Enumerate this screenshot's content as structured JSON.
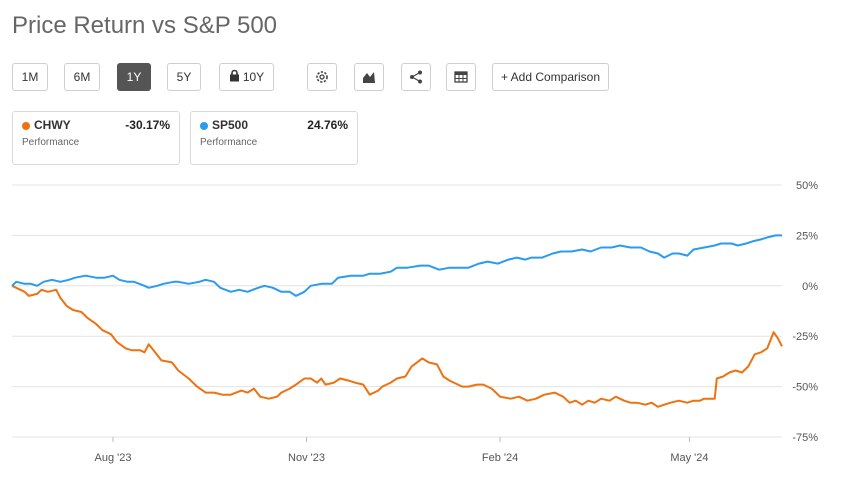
{
  "header": {
    "title": "Price Return vs S&P 500"
  },
  "toolbar": {
    "ranges": [
      "1M",
      "6M",
      "1Y",
      "5Y",
      "10Y"
    ],
    "active_range": "1Y",
    "add_comparison": "+ Add Comparison",
    "icons": [
      "gear-icon",
      "chart-type-icon",
      "share-icon",
      "table-icon",
      "lock-icon"
    ]
  },
  "legend_cards": [
    {
      "name": "CHWY",
      "value": "-30.17%",
      "sub": "Performance",
      "color": "#ee7210"
    },
    {
      "name": "SP500",
      "value": "24.76%",
      "sub": "Performance",
      "color": "#2b9bef"
    }
  ],
  "chart_data": {
    "type": "line",
    "title": "Price Return vs S&P 500",
    "xlabel": "",
    "ylabel": "",
    "x_range": [
      "2023-06-14",
      "2024-06-14"
    ],
    "x_ticks": [
      {
        "date": "2023-08-01",
        "label": "Aug '23"
      },
      {
        "date": "2023-11-01",
        "label": "Nov '23"
      },
      {
        "date": "2024-02-01",
        "label": "Feb '24"
      },
      {
        "date": "2024-05-01",
        "label": "May '24"
      }
    ],
    "y_ticks": [
      50,
      25,
      0,
      -25,
      -50,
      -75
    ],
    "y_tick_labels": [
      "50%",
      "25%",
      "0%",
      "-25%",
      "-50%",
      "-75%"
    ],
    "ylim": [
      -75,
      50
    ],
    "grid": true,
    "y_axis_side": "right",
    "series": [
      {
        "name": "CHWY",
        "color": "#ee7210",
        "points": [
          [
            "2023-06-14",
            0
          ],
          [
            "2023-06-16",
            -1
          ],
          [
            "2023-06-20",
            -3
          ],
          [
            "2023-06-22",
            -5
          ],
          [
            "2023-06-26",
            -4
          ],
          [
            "2023-06-28",
            -2
          ],
          [
            "2023-07-01",
            -3
          ],
          [
            "2023-07-05",
            -2
          ],
          [
            "2023-07-07",
            -6
          ],
          [
            "2023-07-10",
            -10
          ],
          [
            "2023-07-13",
            -12
          ],
          [
            "2023-07-17",
            -13
          ],
          [
            "2023-07-20",
            -16
          ],
          [
            "2023-07-24",
            -19
          ],
          [
            "2023-07-27",
            -22
          ],
          [
            "2023-07-31",
            -24
          ],
          [
            "2023-08-03",
            -28
          ],
          [
            "2023-08-07",
            -31
          ],
          [
            "2023-08-10",
            -32
          ],
          [
            "2023-08-14",
            -32
          ],
          [
            "2023-08-16",
            -33
          ],
          [
            "2023-08-18",
            -29
          ],
          [
            "2023-08-21",
            -33
          ],
          [
            "2023-08-24",
            -37
          ],
          [
            "2023-08-29",
            -38
          ],
          [
            "2023-09-01",
            -42
          ],
          [
            "2023-09-06",
            -46
          ],
          [
            "2023-09-10",
            -50
          ],
          [
            "2023-09-14",
            -53
          ],
          [
            "2023-09-18",
            -53
          ],
          [
            "2023-09-22",
            -54
          ],
          [
            "2023-09-26",
            -54
          ],
          [
            "2023-10-01",
            -52
          ],
          [
            "2023-10-04",
            -53
          ],
          [
            "2023-10-07",
            -51
          ],
          [
            "2023-10-10",
            -55
          ],
          [
            "2023-10-14",
            -56
          ],
          [
            "2023-10-18",
            -55
          ],
          [
            "2023-10-20",
            -53
          ],
          [
            "2023-10-24",
            -51
          ],
          [
            "2023-10-27",
            -49
          ],
          [
            "2023-10-31",
            -46
          ],
          [
            "2023-11-03",
            -46
          ],
          [
            "2023-11-06",
            -48
          ],
          [
            "2023-11-08",
            -46
          ],
          [
            "2023-11-10",
            -49
          ],
          [
            "2023-11-14",
            -48
          ],
          [
            "2023-11-17",
            -46
          ],
          [
            "2023-11-21",
            -47
          ],
          [
            "2023-11-24",
            -48
          ],
          [
            "2023-11-28",
            -49
          ],
          [
            "2023-12-01",
            -54
          ],
          [
            "2023-12-05",
            -52
          ],
          [
            "2023-12-07",
            -50
          ],
          [
            "2023-12-11",
            -48
          ],
          [
            "2023-12-14",
            -46
          ],
          [
            "2023-12-18",
            -45
          ],
          [
            "2023-12-21",
            -40
          ],
          [
            "2023-12-26",
            -36
          ],
          [
            "2023-12-29",
            -38
          ],
          [
            "2024-01-02",
            -39
          ],
          [
            "2024-01-05",
            -45
          ],
          [
            "2024-01-08",
            -47
          ],
          [
            "2024-01-10",
            -48
          ],
          [
            "2024-01-14",
            -50
          ],
          [
            "2024-01-17",
            -50
          ],
          [
            "2024-01-21",
            -49
          ],
          [
            "2024-01-24",
            -49
          ],
          [
            "2024-01-28",
            -51
          ],
          [
            "2024-02-01",
            -55
          ],
          [
            "2024-02-06",
            -56
          ],
          [
            "2024-02-10",
            -55
          ],
          [
            "2024-02-14",
            -57
          ],
          [
            "2024-02-18",
            -56
          ],
          [
            "2024-02-22",
            -54
          ],
          [
            "2024-02-27",
            -53
          ],
          [
            "2024-03-02",
            -55
          ],
          [
            "2024-03-05",
            -58
          ],
          [
            "2024-03-08",
            -57
          ],
          [
            "2024-03-11",
            -59
          ],
          [
            "2024-03-14",
            -57
          ],
          [
            "2024-03-17",
            -58
          ],
          [
            "2024-03-20",
            -56
          ],
          [
            "2024-03-24",
            -57
          ],
          [
            "2024-03-27",
            -55
          ],
          [
            "2024-03-31",
            -57
          ],
          [
            "2024-04-03",
            -58
          ],
          [
            "2024-04-06",
            -58
          ],
          [
            "2024-04-10",
            -59
          ],
          [
            "2024-04-13",
            -58
          ],
          [
            "2024-04-16",
            -60
          ],
          [
            "2024-04-19",
            -59
          ],
          [
            "2024-04-22",
            -58
          ],
          [
            "2024-04-26",
            -57
          ],
          [
            "2024-04-30",
            -58
          ],
          [
            "2024-05-03",
            -57
          ],
          [
            "2024-05-06",
            -57
          ],
          [
            "2024-05-08",
            -56
          ],
          [
            "2024-05-10",
            -56
          ],
          [
            "2024-05-13",
            -56
          ],
          [
            "2024-05-14",
            -46
          ],
          [
            "2024-05-17",
            -45
          ],
          [
            "2024-05-20",
            -43
          ],
          [
            "2024-05-23",
            -42
          ],
          [
            "2024-05-26",
            -43
          ],
          [
            "2024-05-29",
            -40
          ],
          [
            "2024-06-01",
            -34
          ],
          [
            "2024-06-04",
            -33
          ],
          [
            "2024-06-07",
            -31
          ],
          [
            "2024-06-10",
            -23
          ],
          [
            "2024-06-12",
            -26
          ],
          [
            "2024-06-14",
            -30
          ]
        ]
      },
      {
        "name": "SP500",
        "color": "#2b9bef",
        "points": [
          [
            "2023-06-14",
            0
          ],
          [
            "2023-06-16",
            2
          ],
          [
            "2023-06-20",
            1
          ],
          [
            "2023-06-23",
            1
          ],
          [
            "2023-06-26",
            0
          ],
          [
            "2023-06-29",
            2
          ],
          [
            "2023-07-03",
            3
          ],
          [
            "2023-07-07",
            2
          ],
          [
            "2023-07-11",
            3
          ],
          [
            "2023-07-14",
            4
          ],
          [
            "2023-07-19",
            5
          ],
          [
            "2023-07-24",
            4
          ],
          [
            "2023-07-28",
            4
          ],
          [
            "2023-08-01",
            5
          ],
          [
            "2023-08-04",
            3
          ],
          [
            "2023-08-08",
            2
          ],
          [
            "2023-08-11",
            2
          ],
          [
            "2023-08-16",
            0
          ],
          [
            "2023-08-18",
            -1
          ],
          [
            "2023-08-22",
            0
          ],
          [
            "2023-08-25",
            1
          ],
          [
            "2023-08-30",
            2
          ],
          [
            "2023-09-01",
            2
          ],
          [
            "2023-09-06",
            1
          ],
          [
            "2023-09-11",
            2
          ],
          [
            "2023-09-14",
            3
          ],
          [
            "2023-09-18",
            2
          ],
          [
            "2023-09-21",
            -1
          ],
          [
            "2023-09-26",
            -3
          ],
          [
            "2023-09-30",
            -2
          ],
          [
            "2023-10-04",
            -3
          ],
          [
            "2023-10-09",
            -1
          ],
          [
            "2023-10-12",
            0
          ],
          [
            "2023-10-16",
            -1
          ],
          [
            "2023-10-20",
            -3
          ],
          [
            "2023-10-24",
            -3
          ],
          [
            "2023-10-27",
            -5
          ],
          [
            "2023-10-31",
            -3
          ],
          [
            "2023-11-03",
            0
          ],
          [
            "2023-11-08",
            1
          ],
          [
            "2023-11-13",
            1
          ],
          [
            "2023-11-16",
            4
          ],
          [
            "2023-11-22",
            5
          ],
          [
            "2023-11-28",
            5
          ],
          [
            "2023-12-01",
            6
          ],
          [
            "2023-12-06",
            6
          ],
          [
            "2023-12-11",
            7
          ],
          [
            "2023-12-14",
            9
          ],
          [
            "2023-12-19",
            9
          ],
          [
            "2023-12-25",
            10
          ],
          [
            "2023-12-29",
            10
          ],
          [
            "2024-01-03",
            8
          ],
          [
            "2024-01-08",
            9
          ],
          [
            "2024-01-12",
            9
          ],
          [
            "2024-01-17",
            9
          ],
          [
            "2024-01-22",
            11
          ],
          [
            "2024-01-26",
            12
          ],
          [
            "2024-01-31",
            11
          ],
          [
            "2024-02-05",
            13
          ],
          [
            "2024-02-09",
            14
          ],
          [
            "2024-02-13",
            13
          ],
          [
            "2024-02-16",
            14
          ],
          [
            "2024-02-21",
            14
          ],
          [
            "2024-02-26",
            16
          ],
          [
            "2024-03-01",
            17
          ],
          [
            "2024-03-06",
            17
          ],
          [
            "2024-03-11",
            18
          ],
          [
            "2024-03-15",
            17
          ],
          [
            "2024-03-20",
            19
          ],
          [
            "2024-03-25",
            19
          ],
          [
            "2024-03-29",
            20
          ],
          [
            "2024-04-03",
            19
          ],
          [
            "2024-04-08",
            19
          ],
          [
            "2024-04-12",
            17
          ],
          [
            "2024-04-16",
            16
          ],
          [
            "2024-04-19",
            14
          ],
          [
            "2024-04-23",
            16
          ],
          [
            "2024-04-26",
            16
          ],
          [
            "2024-04-30",
            15
          ],
          [
            "2024-05-03",
            18
          ],
          [
            "2024-05-08",
            19
          ],
          [
            "2024-05-13",
            20
          ],
          [
            "2024-05-16",
            21
          ],
          [
            "2024-05-21",
            21
          ],
          [
            "2024-05-24",
            20
          ],
          [
            "2024-05-28",
            21
          ],
          [
            "2024-05-31",
            22
          ],
          [
            "2024-06-04",
            23
          ],
          [
            "2024-06-07",
            24
          ],
          [
            "2024-06-11",
            25
          ],
          [
            "2024-06-14",
            25
          ]
        ]
      }
    ]
  }
}
